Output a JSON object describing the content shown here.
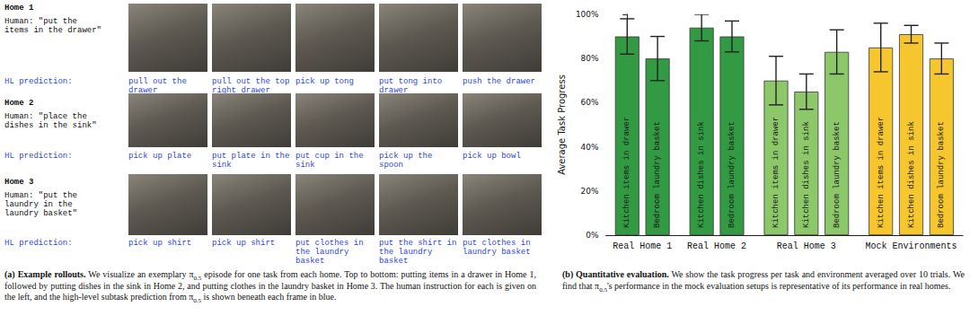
{
  "panel_a": {
    "rows": [
      {
        "home": "Home 1",
        "human": "Human: \"put the items in the drawer\"",
        "hl_label": "HL prediction:",
        "predictions": [
          "pull out the drawer",
          "pull out the top right drawer",
          "pick up tong",
          "put tong into drawer",
          "push the drawer"
        ]
      },
      {
        "home": "Home 2",
        "human": "Human: \"place the dishes in the sink\"",
        "hl_label": "HL prediction:",
        "predictions": [
          "pick up plate",
          "put plate in the sink",
          "put cup in the sink",
          "pick up the spoon",
          "pick up bowl"
        ]
      },
      {
        "home": "Home 3",
        "human": "Human: \"put the laundry in the laundry basket\"",
        "hl_label": "HL prediction:",
        "predictions": [
          "pick up shirt",
          "pick up shirt",
          "put clothes in the laundry basket",
          "put the shirt in the laundry basket",
          "put clothes in laundry basket"
        ]
      }
    ]
  },
  "chart_data": {
    "type": "bar",
    "y_label": "Average Task Progress",
    "categories": [
      "Kitchen items in drawer",
      "Bedroom laundry basket",
      "Kitchen dishes in sink",
      "Bedroom laundry basket",
      "Kitchen items in drawer",
      "Kitchen dishes in sink",
      "Bedroom laundry basket",
      "Kitchen items in drawer",
      "Kitchen dishes in sink",
      "Bedroom laundry basket"
    ],
    "groups": [
      "Real Home 1",
      "Real Home 1",
      "Real Home 2",
      "Real Home 2",
      "Real Home 3",
      "Real Home 3",
      "Real Home 3",
      "Mock Environments",
      "Mock Environments",
      "Mock Environments"
    ],
    "values": [
      90,
      80,
      94,
      90,
      70,
      65,
      83,
      85,
      91,
      80
    ],
    "errors": [
      8,
      10,
      6,
      7,
      11,
      8,
      10,
      11,
      4,
      7
    ],
    "colors": [
      "#339a44",
      "#339a44",
      "#339a44",
      "#339a44",
      "#8cc86a",
      "#8cc86a",
      "#8cc86a",
      "#f5c62e",
      "#f5c62e",
      "#f5c62e"
    ],
    "ylim": [
      0,
      100
    ],
    "yticks": [
      {
        "value": 0,
        "label": "0%"
      },
      {
        "value": 20,
        "label": "20%"
      },
      {
        "value": 40,
        "label": "40%"
      },
      {
        "value": 60,
        "label": "60%"
      },
      {
        "value": 80,
        "label": "80%"
      },
      {
        "value": 100,
        "label": "100%"
      }
    ],
    "grid": false
  },
  "captions": [
    {
      "label": "(a)",
      "title": "Example rollouts.",
      "text": "We visualize an exemplary π0.5 episode for one task from each home. Top to bottom: putting items in a drawer in Home 1, followed by putting dishes in the sink in Home 2, and putting clothes in the laundry basket in Home 3. The human instruction for each is given on the left, and the high-level subtask prediction from π0.5 is shown beneath each frame in blue."
    },
    {
      "label": "(b)",
      "title": "Quantitative evaluation.",
      "text": "We show the task progress per task and environment averaged over 10 trials. We find that π0.5's performance in the mock evaluation setups is representative of its performance in real homes."
    }
  ]
}
